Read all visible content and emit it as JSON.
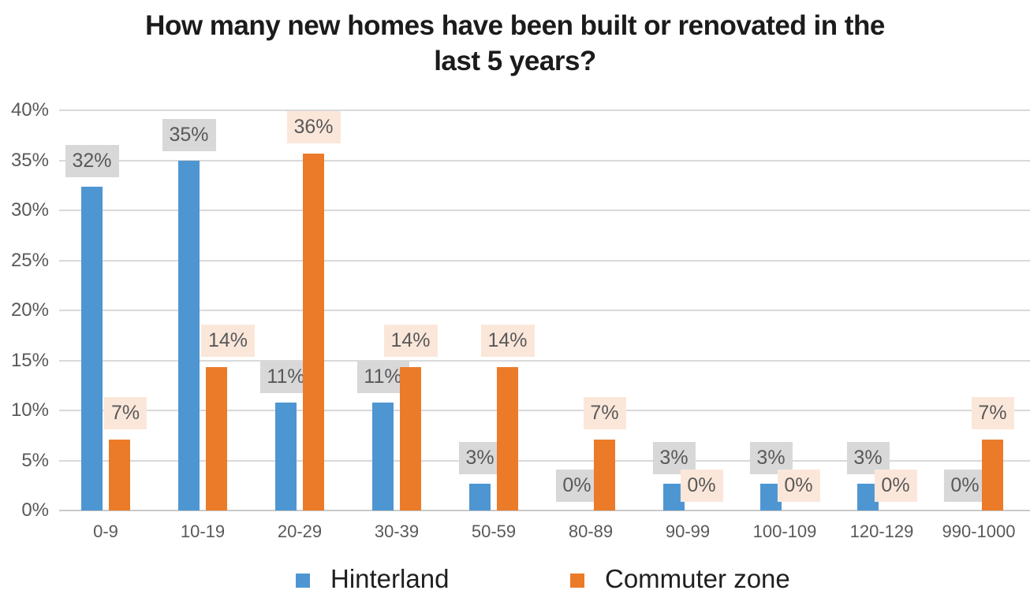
{
  "title": {
    "line1": "How many new homes have been built or renovated in the",
    "line2": "last 5 years?"
  },
  "chart_data": {
    "type": "bar",
    "title": "How many new homes have been built or renovated in the last 5 years?",
    "categories": [
      "0-9",
      "10-19",
      "20-29",
      "30-39",
      "50-59",
      "80-89",
      "90-99",
      "100-109",
      "120-129",
      "990-1000"
    ],
    "series": [
      {
        "name": "Hinterland",
        "color": "#4E96D2",
        "label_bg": "#D8D8D8",
        "values": [
          32.4,
          35.0,
          10.8,
          10.8,
          2.7,
          0,
          2.7,
          2.7,
          2.7,
          0
        ],
        "labels": [
          "32%",
          "35%",
          "11%",
          "11%",
          "3%",
          "0%",
          "3%",
          "3%",
          "3%",
          "0%"
        ]
      },
      {
        "name": "Commuter zone",
        "color": "#EB7B28",
        "label_bg": "#FBE7DA",
        "values": [
          7.1,
          14.3,
          35.7,
          14.3,
          14.3,
          7.1,
          0,
          0,
          0,
          7.1
        ],
        "labels": [
          "7%",
          "14%",
          "36%",
          "14%",
          "14%",
          "7%",
          "0%",
          "0%",
          "0%",
          "7%"
        ]
      }
    ],
    "xlabel": "",
    "ylabel": "",
    "ylim": [
      0,
      40
    ],
    "y_ticks": [
      "40%",
      "35%",
      "30%",
      "25%",
      "20%",
      "15%",
      "10%",
      "5%",
      "0%"
    ],
    "grid": true,
    "legend_position": "bottom",
    "label_text_color": "#595959",
    "axis_text_color": "#595959",
    "gridline_color": "#D9D9D9"
  }
}
